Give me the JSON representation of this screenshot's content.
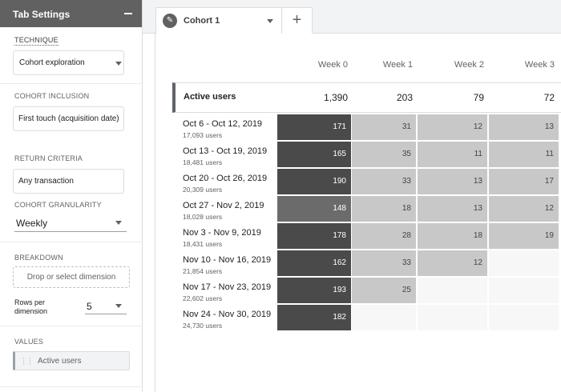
{
  "sidebar": {
    "title": "Tab Settings",
    "technique": {
      "label": "TECHNIQUE",
      "value": "Cohort exploration"
    },
    "cohort_inclusion": {
      "label": "COHORT INCLUSION",
      "value": "First touch (acquisition date)"
    },
    "return_criteria": {
      "label": "RETURN CRITERIA",
      "value": "Any transaction"
    },
    "cohort_granularity": {
      "label": "COHORT GRANULARITY",
      "value": "Weekly"
    },
    "breakdown": {
      "label": "BREAKDOWN",
      "placeholder": "Drop or select dimension",
      "rows_label": "Rows per dimension",
      "rows_value": "5"
    },
    "values": {
      "label": "VALUES",
      "chip": "Active users"
    }
  },
  "tabs": [
    {
      "label": "Cohort 1"
    }
  ],
  "table": {
    "columns": [
      "Week 0",
      "Week 1",
      "Week 2",
      "Week 3"
    ],
    "totals": {
      "label": "Active users",
      "values": [
        "1,390",
        "203",
        "79",
        "72"
      ]
    },
    "rows": [
      {
        "label": "Oct 6 - Oct 12, 2019",
        "users": "17,093 users",
        "values": [
          "171",
          "31",
          "12",
          "13"
        ]
      },
      {
        "label": "Oct 13 - Oct 19, 2019",
        "users": "18,481 users",
        "values": [
          "165",
          "35",
          "11",
          "11"
        ]
      },
      {
        "label": "Oct 20 - Oct 26, 2019",
        "users": "20,309 users",
        "values": [
          "190",
          "33",
          "13",
          "17"
        ]
      },
      {
        "label": "Oct 27 - Nov 2, 2019",
        "users": "18,028 users",
        "values": [
          "148",
          "18",
          "13",
          "12"
        ]
      },
      {
        "label": "Nov 3 - Nov 9, 2019",
        "users": "18,431 users",
        "values": [
          "178",
          "28",
          "18",
          "19"
        ]
      },
      {
        "label": "Nov 10 - Nov 16, 2019",
        "users": "21,854 users",
        "values": [
          "162",
          "33",
          "12",
          ""
        ]
      },
      {
        "label": "Nov 17 - Nov 23, 2019",
        "users": "22,602 users",
        "values": [
          "193",
          "25",
          "",
          ""
        ]
      },
      {
        "label": "Nov 24 - Nov 30, 2019",
        "users": "24,730 users",
        "values": [
          "182",
          "",
          "",
          ""
        ]
      }
    ]
  },
  "colors": {
    "week0_dark": "#4a4a4a",
    "week0_light": "#6b6b6b",
    "later": "#c8c8c8",
    "empty": "#f7f7f7",
    "header": "#616161"
  }
}
